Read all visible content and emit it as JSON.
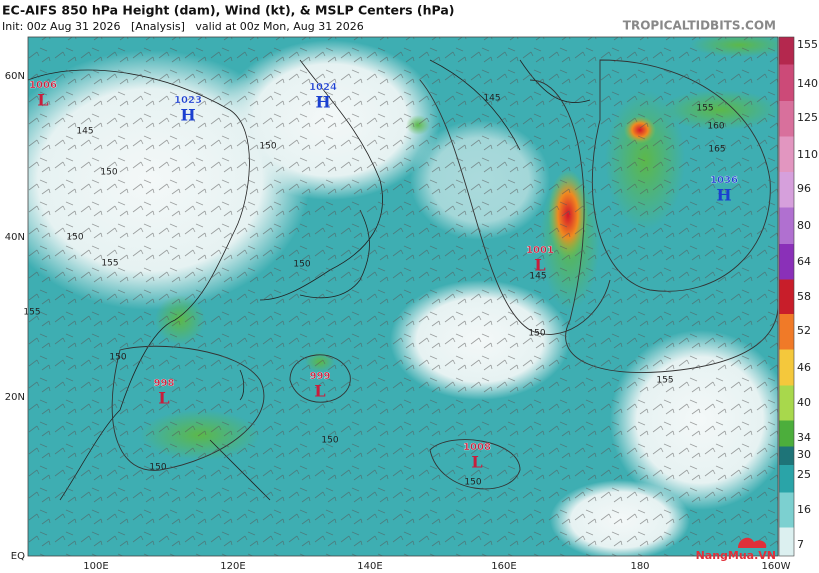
{
  "header": {
    "title": "EC-AIFS 850 hPa Height (dam), Wind (kt), & MSLP Centers (hPa)",
    "subtitle": "Init: 00z Aug 31 2026   [Analysis]   valid at 00z Mon, Aug 31 2026",
    "source": "TROPICALTIDBITS.COM"
  },
  "map": {
    "lat_labels": [
      "60N",
      "40N",
      "20N",
      "EQ"
    ],
    "lon_labels": [
      "100E",
      "120E",
      "140E",
      "160E",
      "180",
      "160W"
    ],
    "pressure_centers": [
      {
        "pressure": "1006",
        "type": "L"
      },
      {
        "pressure": "1023",
        "type": "H"
      },
      {
        "pressure": "1024",
        "type": "H"
      },
      {
        "pressure": "1036",
        "type": "H"
      },
      {
        "pressure": "1001",
        "type": "L"
      },
      {
        "pressure": "998",
        "type": "L"
      },
      {
        "pressure": "999",
        "type": "L"
      },
      {
        "pressure": "1008",
        "type": "L"
      }
    ],
    "contour_labels": [
      "145",
      "150",
      "150",
      "155",
      "145",
      "155",
      "160",
      "165",
      "150",
      "150",
      "145",
      "150",
      "155",
      "150",
      "150",
      "150",
      "150",
      "155"
    ]
  },
  "colorbar": {
    "labels": [
      "155",
      "140",
      "125",
      "110",
      "96",
      "80",
      "64",
      "58",
      "52",
      "46",
      "40",
      "34",
      "30",
      "25",
      "16",
      "7"
    ]
  },
  "watermark": "NangMua.VN"
}
